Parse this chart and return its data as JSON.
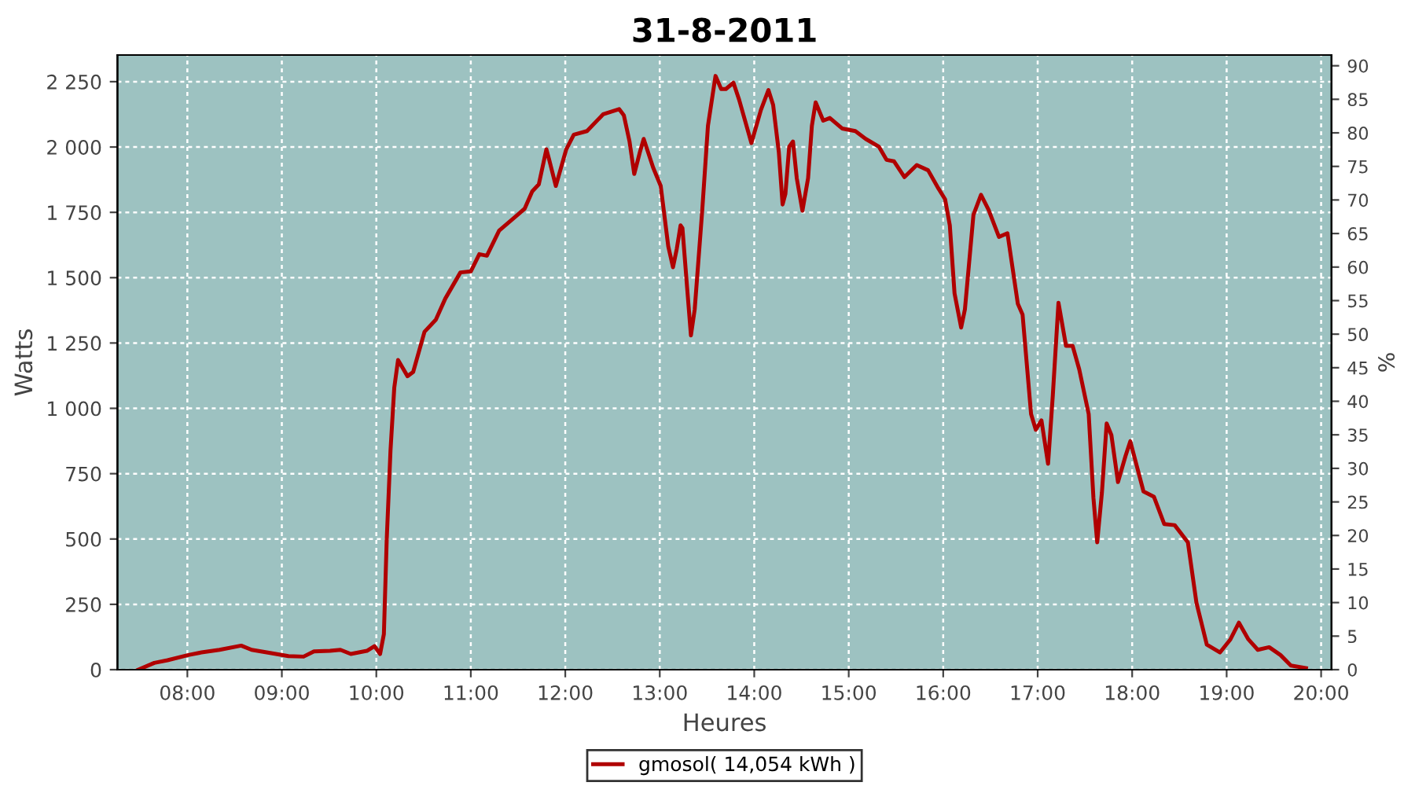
{
  "chart_data": {
    "type": "line",
    "title": "31-8-2011",
    "xlabel": "Heures",
    "ylabel": "Watts",
    "y2label": "%",
    "xlim": [
      7.26,
      20.11
    ],
    "xticks": [
      {
        "value": 8,
        "label": "08:00"
      },
      {
        "value": 9,
        "label": "09:00"
      },
      {
        "value": 10,
        "label": "10:00"
      },
      {
        "value": 11,
        "label": "11:00"
      },
      {
        "value": 12,
        "label": "12:00"
      },
      {
        "value": 13,
        "label": "13:00"
      },
      {
        "value": 14,
        "label": "14:00"
      },
      {
        "value": 15,
        "label": "15:00"
      },
      {
        "value": 16,
        "label": "16:00"
      },
      {
        "value": 17,
        "label": "17:00"
      },
      {
        "value": 18,
        "label": "18:00"
      },
      {
        "value": 19,
        "label": "19:00"
      },
      {
        "value": 20,
        "label": "20:00"
      }
    ],
    "ylim": [
      0,
      2352
    ],
    "yticks": [
      0,
      250,
      500,
      750,
      {
        "value": 1000,
        "label": "1 000"
      },
      {
        "value": 1250,
        "label": "1 250"
      },
      {
        "value": 1500,
        "label": "1 500"
      },
      {
        "value": 1750,
        "label": "1 750"
      },
      {
        "value": 2000,
        "label": "2 000"
      },
      {
        "value": 2250,
        "label": "2 250"
      }
    ],
    "y2lim": [
      0,
      91.6
    ],
    "y2ticks": [
      0,
      5,
      10,
      15,
      20,
      25,
      30,
      35,
      40,
      45,
      50,
      55,
      60,
      65,
      70,
      75,
      80,
      85,
      90
    ],
    "grid": true,
    "legend": "bottom",
    "marker": "none",
    "line_style": "solid",
    "series": [
      {
        "name": "gmosol( 14,054 kWh )",
        "color": "#b00000",
        "x": [
          7.48,
          7.65,
          7.79,
          8.01,
          8.15,
          8.34,
          8.57,
          8.68,
          8.84,
          9.07,
          9.23,
          9.34,
          9.51,
          9.62,
          9.73,
          9.9,
          9.98,
          10.04,
          10.08,
          10.11,
          10.15,
          10.19,
          10.23,
          10.33,
          10.39,
          10.51,
          10.63,
          10.73,
          10.89,
          11.0,
          11.09,
          11.17,
          11.3,
          11.48,
          11.57,
          11.65,
          11.72,
          11.8,
          11.83,
          11.9,
          12.01,
          12.09,
          12.23,
          12.4,
          12.57,
          12.62,
          12.68,
          12.73,
          12.79,
          12.83,
          12.93,
          13.01,
          13.09,
          13.14,
          13.18,
          13.22,
          13.24,
          13.29,
          13.33,
          13.37,
          13.45,
          13.51,
          13.59,
          13.65,
          13.7,
          13.78,
          13.84,
          13.97,
          14.07,
          14.15,
          14.2,
          14.26,
          14.3,
          14.33,
          14.37,
          14.41,
          14.45,
          14.51,
          14.57,
          14.61,
          14.65,
          14.73,
          14.8,
          14.93,
          15.07,
          15.18,
          15.32,
          15.4,
          15.48,
          15.59,
          15.72,
          15.84,
          15.95,
          16.02,
          16.07,
          16.12,
          16.19,
          16.23,
          16.32,
          16.4,
          16.48,
          16.59,
          16.68,
          16.79,
          16.84,
          16.93,
          16.98,
          17.04,
          17.11,
          17.16,
          17.22,
          17.3,
          17.37,
          17.44,
          17.54,
          17.59,
          17.63,
          17.68,
          17.73,
          17.78,
          17.85,
          17.93,
          17.98,
          18.05,
          18.12,
          18.23,
          18.34,
          18.45,
          18.59,
          18.68,
          18.79,
          18.93,
          19.04,
          19.13,
          19.23,
          19.33,
          19.45,
          19.57,
          19.68,
          19.84
        ],
        "values": [
          0,
          26,
          36,
          56,
          66,
          76,
          92,
          76,
          66,
          52,
          50,
          70,
          72,
          76,
          60,
          72,
          90,
          60,
          136,
          497,
          838,
          1079,
          1185,
          1123,
          1139,
          1293,
          1339,
          1420,
          1520,
          1524,
          1590,
          1584,
          1680,
          1736,
          1764,
          1830,
          1857,
          1991,
          1951,
          1851,
          1991,
          2047,
          2061,
          2125,
          2145,
          2121,
          2021,
          1897,
          1981,
          2031,
          1921,
          1851,
          1620,
          1540,
          1610,
          1700,
          1690,
          1460,
          1279,
          1379,
          1760,
          2081,
          2272,
          2222,
          2222,
          2246,
          2181,
          2015,
          2141,
          2218,
          2161,
          1981,
          1780,
          1821,
          2001,
          2021,
          1881,
          1756,
          1881,
          2081,
          2171,
          2101,
          2111,
          2071,
          2061,
          2031,
          2001,
          1951,
          1945,
          1885,
          1931,
          1911,
          1841,
          1800,
          1700,
          1440,
          1309,
          1379,
          1740,
          1817,
          1760,
          1656,
          1670,
          1400,
          1359,
          978,
          918,
          954,
          788,
          1049,
          1404,
          1239,
          1239,
          1149,
          978,
          658,
          487,
          678,
          942,
          898,
          718,
          818,
          874,
          778,
          682,
          662,
          557,
          553,
          487,
          257,
          96,
          66,
          116,
          180,
          116,
          76,
          86,
          56,
          16,
          6
        ]
      }
    ]
  }
}
